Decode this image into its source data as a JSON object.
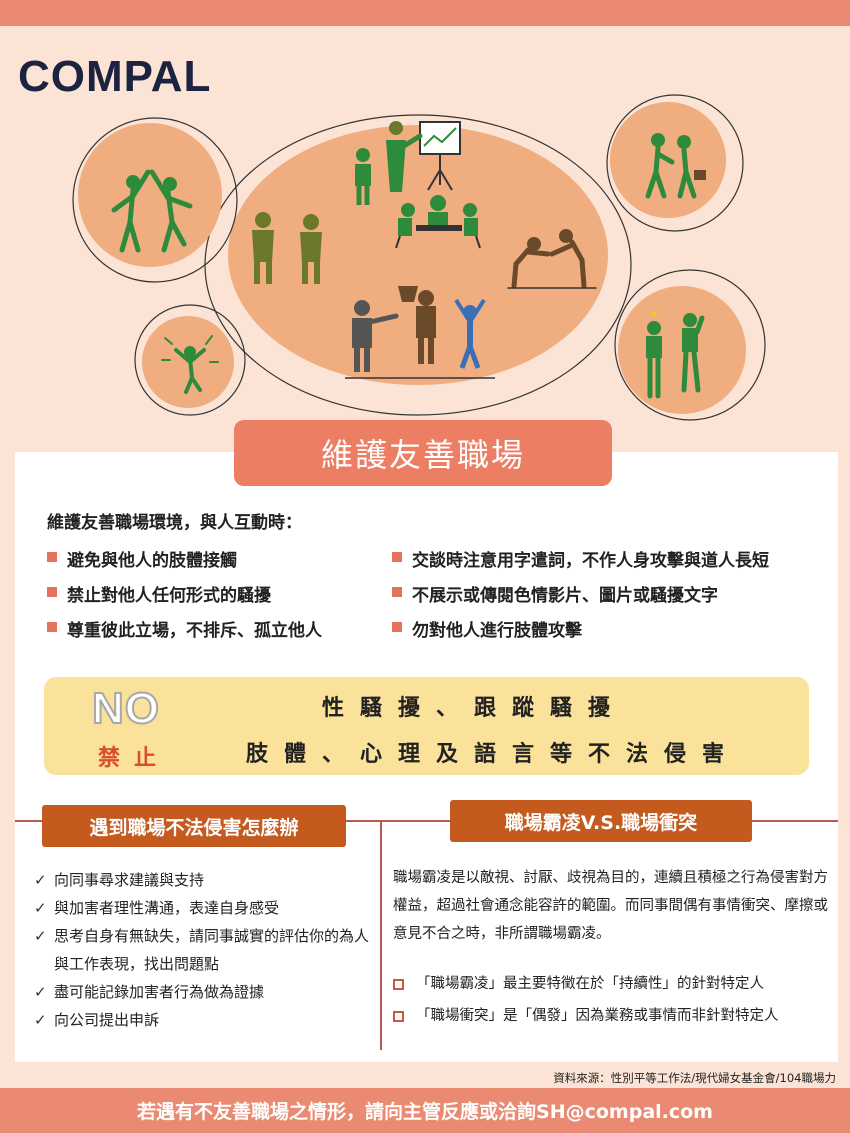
{
  "brand": {
    "logo_text": "COMPAL"
  },
  "title": "維護友善職場",
  "intro": "維護友善職場環境，與人互動時：",
  "rules_left": [
    "避免與他人的肢體接觸",
    "禁止對他人任何形式的騷擾",
    "尊重彼此立場，不排斥、孤立他人"
  ],
  "rules_right": [
    "交談時注意用字遣詞，不作人身攻擊與道人長短",
    "不展示或傳閱色情影片、圖片或騷擾文字",
    "勿對他人進行肢體攻擊"
  ],
  "no_box": {
    "no_label": "NO",
    "no_sub": "禁止",
    "line1": "性騷擾、跟蹤騷擾",
    "line2": "肢體、心理及語言等不法侵害"
  },
  "section_left": {
    "heading": "遇到職場不法侵害怎麼辦",
    "items": [
      "向同事尋求建議與支持",
      "與加害者理性溝通，表達自身感受",
      "思考自身有無缺失，請同事誠實的評估你的為人與工作表現，找出問題點",
      "盡可能記錄加害者行為做為證據",
      "向公司提出申訴"
    ]
  },
  "section_right": {
    "heading": "職場霸凌V.S.職場衝突",
    "paragraph": "職場霸凌是以敵視、討厭、歧視為目的，連續且積極之行為侵害對方權益，超過社會通念能容許的範圍。而同事間偶有事情衝突、摩擦或意見不合之時，非所謂職場霸凌。",
    "points": [
      "「職場霸凌」最主要特徵在於「持續性」的針對特定人",
      "「職場衝突」是「偶發」因為業務或事情而非針對特定人"
    ]
  },
  "source": "資料來源：性別平等工作法/現代婦女基金會/104職場力",
  "footer": "若遇有不友善職場之情形，請向主管反應或洽詢SH@compal.com",
  "colors": {
    "accent": "#ec7e64",
    "background": "#fbe4d6",
    "icon_green": "#2e8b3c",
    "yellow_box": "#fbe29b",
    "section_head": "#c55a1e"
  }
}
